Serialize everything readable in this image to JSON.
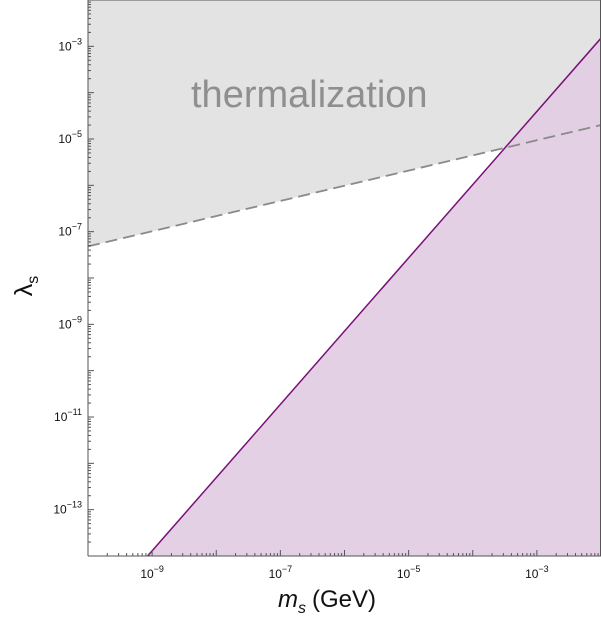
{
  "chart_data": {
    "type": "area",
    "x_scale": "log",
    "y_scale": "log",
    "xlim": [
      1e-10,
      0.01
    ],
    "ylim": [
      1e-14,
      0.01
    ],
    "xlabel": {
      "symbol": "m",
      "subscript": "s",
      "unit": "(GeV)"
    },
    "ylabel": {
      "symbol": "λ",
      "subscript": "s"
    },
    "x_ticks": [
      {
        "value": 1e-09,
        "label": "10",
        "exponent": "−9"
      },
      {
        "value": 1e-07,
        "label": "10",
        "exponent": "−7"
      },
      {
        "value": 1e-05,
        "label": "10",
        "exponent": "−5"
      },
      {
        "value": 0.001,
        "label": "10",
        "exponent": "−3"
      }
    ],
    "y_ticks": [
      {
        "value": 0.001,
        "label": "10",
        "exponent": "−3"
      },
      {
        "value": 1e-05,
        "label": "10",
        "exponent": "−5"
      },
      {
        "value": 1e-07,
        "label": "10",
        "exponent": "−7"
      },
      {
        "value": 1e-09,
        "label": "10",
        "exponent": "−9"
      },
      {
        "value": 1e-11,
        "label": "10",
        "exponent": "−11"
      },
      {
        "value": 1e-13,
        "label": "10",
        "exponent": "−13"
      }
    ],
    "regions": [
      {
        "boundary": [
          {
            "x": 1e-10,
            "y": 4.8e-08
          },
          {
            "x": 0.01,
            "y": 2e-05
          }
        ],
        "fill_side": "above",
        "text": "thermalization"
      },
      {
        "boundary": [
          {
            "x": 8.5e-10,
            "y": 1e-14
          },
          {
            "x": 0.01,
            "y": 0.0015
          }
        ],
        "fill_side": "below",
        "text": ""
      }
    ],
    "grid": false
  },
  "colors": {
    "thermalization_fill": "#e3e3e3",
    "thermalization_line": "#8a8a8a",
    "purple_fill": "#e3cde3",
    "purple_line": "#7a0f7a",
    "axis": "#555555",
    "text": "#111111",
    "region_text": "#8f8f8f"
  }
}
